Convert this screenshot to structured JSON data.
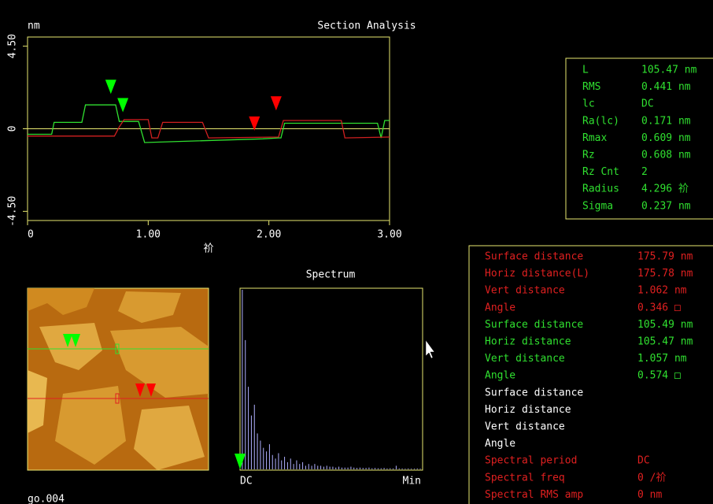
{
  "title": "Section Analysis",
  "profile": {
    "y_unit": "nm",
    "x_label": "祄",
    "xlim": [
      0,
      3
    ],
    "ylim": [
      -5,
      5
    ],
    "xticks": [
      0,
      {
        "value": 1,
        "label": "1.00"
      },
      {
        "value": 2,
        "label": "2.00"
      },
      {
        "value": 3,
        "label": "3.00"
      }
    ],
    "yticks": [
      {
        "value": 4.5,
        "label": "4.50"
      },
      0,
      {
        "value": -4.5,
        "label": "-4.50"
      }
    ],
    "series": [
      {
        "color": "#30e030",
        "x": [
          0,
          0.2,
          0.22,
          0.45,
          0.48,
          0.73,
          0.76,
          0.92,
          0.97,
          1.95,
          2.08,
          2.1,
          2.13,
          2.9,
          2.93,
          2.96,
          3.0
        ],
        "values": [
          -0.3,
          -0.3,
          0.35,
          0.35,
          1.3,
          1.3,
          0.4,
          0.4,
          -0.75,
          -0.55,
          -0.5,
          -0.5,
          0.3,
          0.3,
          -0.5,
          0.45,
          0.45
        ]
      },
      {
        "color": "#d02020",
        "x": [
          0,
          0.72,
          0.76,
          0.8,
          1.0,
          1.03,
          1.08,
          1.12,
          1.45,
          1.5,
          2.08,
          2.12,
          2.6,
          2.63,
          3.0
        ],
        "values": [
          -0.4,
          -0.4,
          0.1,
          0.5,
          0.5,
          -0.5,
          -0.5,
          0.35,
          0.35,
          -0.5,
          -0.45,
          0.45,
          0.45,
          -0.5,
          -0.45
        ]
      }
    ],
    "cursors": [
      {
        "color": "#00ff00",
        "x": 0.69,
        "y": 1.9
      },
      {
        "color": "#00ff00",
        "x": 0.79,
        "y": 0.9
      },
      {
        "color": "#ff0000",
        "x": 1.88,
        "y": -0.1
      },
      {
        "color": "#ff0000",
        "x": 2.06,
        "y": 1.0
      }
    ]
  },
  "stats": [
    [
      "L",
      "105.47 nm"
    ],
    [
      "RMS",
      "0.441 nm"
    ],
    [
      "lc",
      "DC"
    ],
    [
      "Ra(lc)",
      "0.171 nm"
    ],
    [
      "Rmax",
      "0.609 nm"
    ],
    [
      "Rz",
      "0.608 nm"
    ],
    [
      "Rz Cnt",
      "2"
    ],
    [
      "Radius",
      "4.296 祄"
    ],
    [
      "Sigma",
      "0.237 nm"
    ]
  ],
  "measurements": [
    {
      "label": "Surface distance",
      "value": "175.79 nm",
      "color": "#e02020"
    },
    {
      "label": "Horiz distance(L)",
      "value": "175.78 nm",
      "color": "#e02020"
    },
    {
      "label": "Vert distance",
      "value": "1.062 nm",
      "color": "#e02020"
    },
    {
      "label": "Angle",
      "value": "0.346 □",
      "color": "#e02020"
    },
    {
      "label": "Surface distance",
      "value": "105.49 nm",
      "color": "#30e030"
    },
    {
      "label": "Horiz distance",
      "value": "105.47 nm",
      "color": "#30e030"
    },
    {
      "label": "Vert distance",
      "value": "1.057 nm",
      "color": "#30e030"
    },
    {
      "label": "Angle",
      "value": "0.574 □",
      "color": "#30e030"
    },
    {
      "label": "Surface distance",
      "value": "",
      "color": "#ffffff"
    },
    {
      "label": "Horiz distance",
      "value": "",
      "color": "#ffffff"
    },
    {
      "label": "Vert distance",
      "value": "",
      "color": "#ffffff"
    },
    {
      "label": "Angle",
      "value": "",
      "color": "#ffffff"
    },
    {
      "label": "Spectral period",
      "value": "DC",
      "color": "#e02020"
    },
    {
      "label": "Spectral freq",
      "value": "0 /祄",
      "color": "#e02020"
    },
    {
      "label": "Spectral RMS amp",
      "value": "0 nm",
      "color": "#e02020"
    }
  ],
  "spectrum": {
    "title": "Spectrum",
    "min_label": "DC",
    "max_label": "Min",
    "values": [
      100,
      72,
      46,
      30,
      36,
      20,
      16,
      12,
      10,
      14,
      8,
      6,
      9,
      5,
      7,
      4,
      6,
      3,
      5,
      3,
      4,
      2,
      3,
      2,
      3,
      2,
      2,
      1.5,
      2,
      1.5,
      1.5,
      1,
      1.5,
      1,
      1,
      1,
      1.5,
      1,
      0.8,
      1,
      0.8,
      0.8,
      1,
      0.6,
      0.8,
      0.6,
      0.6,
      0.8,
      0.5,
      0.6,
      0.5,
      2,
      0.5,
      0.5,
      0.4,
      0.5,
      0.4,
      0.4,
      0.5,
      0.4
    ]
  },
  "image": {
    "name": "go.004"
  }
}
